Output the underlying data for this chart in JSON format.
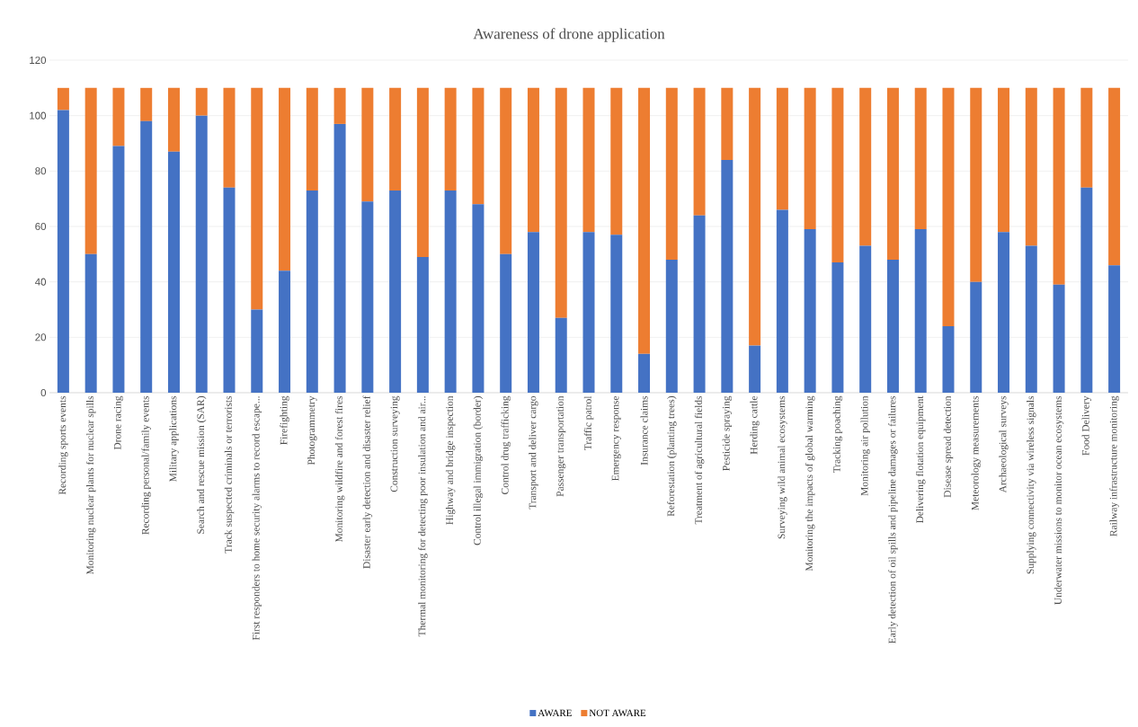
{
  "chart_data": {
    "type": "bar",
    "title": "Awareness of drone application",
    "categories": [
      "Recording sports events",
      "Monitoring nuclear plants for nuclear spills",
      "Drone racing",
      "Recording personal/family events",
      "Military applications",
      "Search and rescue mission (SAR)",
      "Track suspected criminals or terrorists",
      "First responders to home security alarms to record escape...",
      "Firefighting",
      "Photogrammetry",
      "Monitoring wildfire and forest fires",
      "Disaster early detection and disaster relief",
      "Construction surveying",
      "Thermal monitoring for detecting poor insulation and air...",
      "Highway and bridge inspection",
      "Control illegal immigration (border)",
      "Control drug trafficking",
      "Transport and deliver cargo",
      "Passenger transportation",
      "Traffic patrol",
      "Emergency response",
      "Insurance claims",
      "Reforestation (planting trees)",
      "Treatment of agricultural fields",
      "Pesticide spraying",
      "Herding cattle",
      "Surveying wild animal ecosystems",
      "Monitoring the impacts of global warming",
      "Tracking poaching",
      "Monitoring air pollution",
      "Early detection of oil spills and pipeline damages or failures",
      "Delivering flotation equipment",
      "Disease spread detection",
      "Meteorology measurements",
      "Archaeological surveys",
      "Supplying connectivity via wireless signals",
      "Underwater missions to monitor ocean ecosystems",
      "Food Delivery",
      "Railway infrastructure monitoring"
    ],
    "series": [
      {
        "name": "AWARE",
        "color": "#4472c4",
        "values": [
          102,
          50,
          89,
          98,
          87,
          100,
          74,
          30,
          44,
          73,
          97,
          69,
          73,
          49,
          73,
          68,
          50,
          58,
          27,
          58,
          57,
          14,
          48,
          64,
          84,
          17,
          66,
          59,
          47,
          53,
          48,
          59,
          24,
          40,
          58,
          53,
          39,
          74,
          46
        ]
      },
      {
        "name": "NOT AWARE",
        "color": "#ed7d31",
        "values": [
          8,
          60,
          21,
          12,
          23,
          10,
          36,
          80,
          66,
          37,
          13,
          41,
          37,
          61,
          37,
          42,
          60,
          52,
          83,
          52,
          53,
          96,
          62,
          46,
          26,
          93,
          44,
          51,
          63,
          57,
          62,
          51,
          86,
          70,
          52,
          57,
          71,
          36,
          64
        ]
      }
    ],
    "stacked": true,
    "ylim": [
      0,
      120
    ],
    "yticks": [
      0,
      20,
      40,
      60,
      80,
      100,
      120
    ],
    "grid": "y",
    "legend": "bottom"
  }
}
